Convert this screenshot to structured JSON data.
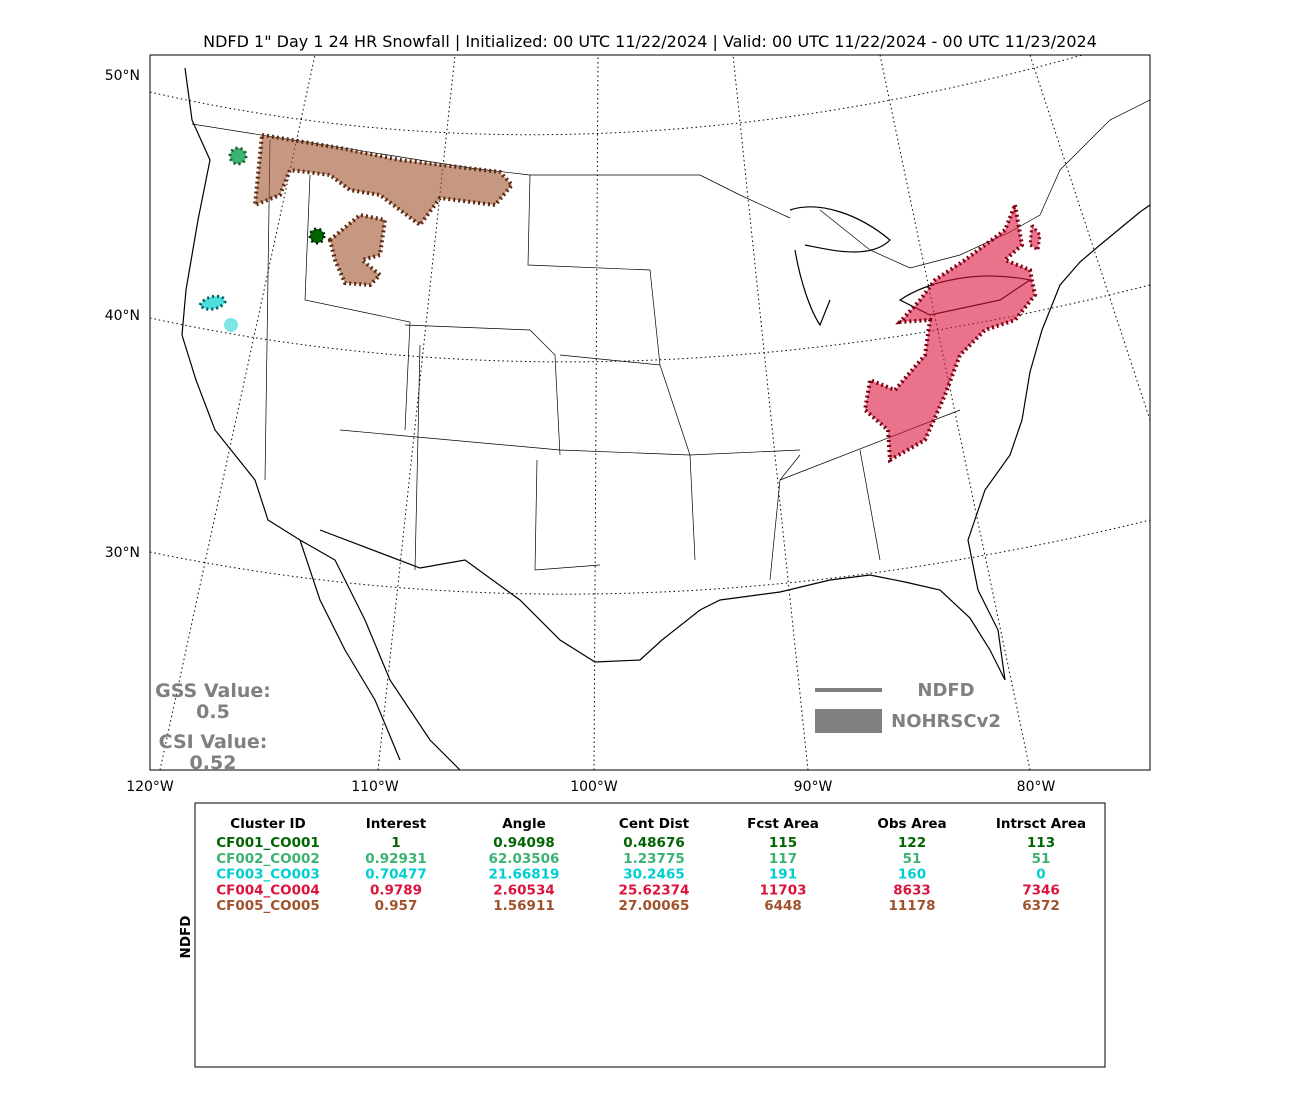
{
  "title": "NDFD 1\" Day 1 24 HR Snowfall | Initialized: 00 UTC 11/22/2024 | Valid: 00 UTC 11/22/2024 - 00 UTC 11/23/2024",
  "map": {
    "lat_labels": [
      "50°N",
      "40°N",
      "30°N"
    ],
    "lon_labels": [
      "120°W",
      "110°W",
      "100°W",
      "90°W",
      "80°W"
    ],
    "scores": [
      {
        "label": "GSS Value:",
        "value": "0.5"
      },
      {
        "label": "CSI Value:",
        "value": "0.52"
      }
    ],
    "legend": [
      "NDFD",
      "NOHRSCv2"
    ]
  },
  "table": {
    "side_label": "NDFD",
    "columns": [
      "Cluster ID",
      "Interest",
      "Angle",
      "Cent Dist",
      "Fcst Area",
      "Obs Area",
      "Intrsct Area"
    ],
    "rows": [
      {
        "color": "#006400",
        "cells": [
          "CF001_CO001",
          "1",
          "0.94098",
          "0.48676",
          "115",
          "122",
          "113"
        ]
      },
      {
        "color": "#3cb371",
        "cells": [
          "CF002_CO002",
          "0.92931",
          "62.03506",
          "1.23775",
          "117",
          "51",
          "51"
        ]
      },
      {
        "color": "#00ced1",
        "cells": [
          "CF003_CO003",
          "0.70477",
          "21.66819",
          "30.2465",
          "191",
          "160",
          "0"
        ]
      },
      {
        "color": "#dc143c",
        "cells": [
          "CF004_CO004",
          "0.9789",
          "2.60534",
          "25.62374",
          "11703",
          "8633",
          "7346"
        ]
      },
      {
        "color": "#a0522d",
        "cells": [
          "CF005_CO005",
          "0.957",
          "1.56911",
          "27.00065",
          "6448",
          "11178",
          "6372"
        ]
      }
    ]
  }
}
